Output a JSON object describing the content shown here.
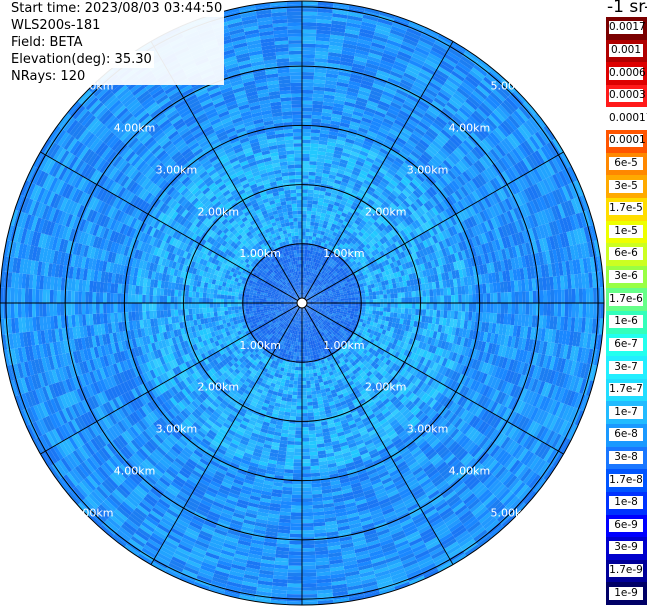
{
  "info": {
    "start_time": "Start time: 2023/08/03 03:44:50",
    "instrument": "WLS200s-181",
    "field": "Field: BETA",
    "elevation": "Elevation(deg): 35.30",
    "nrays": "NRays: 120"
  },
  "colorbar": {
    "units": "-1 sr-1",
    "labels": [
      "0.0017",
      "0.001",
      "0.0006",
      "0.0003",
      "0.00017",
      "0.0001",
      "6e-5",
      "3e-5",
      "1.7e-5",
      "1e-5",
      "6e-6",
      "3e-6",
      "1.7e-6",
      "1e-6",
      "6e-7",
      "3e-7",
      "1.7e-7",
      "1e-7",
      "6e-8",
      "3e-8",
      "1.7e-8",
      "1e-8",
      "6e-9",
      "3e-9",
      "1.7e-9",
      "1e-9"
    ],
    "colors": [
      "#7a0000",
      "#b00000",
      "#dd0000",
      "#ff1a1a",
      "#ffffff",
      "#ff5500",
      "#ff8800",
      "#ffaa00",
      "#ffdd00",
      "#eeff00",
      "#ccff22",
      "#99ff44",
      "#66ff88",
      "#33ffbb",
      "#22ffee",
      "#22eeff",
      "#22ddff",
      "#22bbff",
      "#1a99ff",
      "#1a77ff",
      "#0055ff",
      "#0033ff",
      "#0000ff",
      "#0000cc",
      "#000099",
      "#000066"
    ]
  },
  "chart_data": {
    "type": "heatmap",
    "projection": "polar PPI",
    "field": "BETA",
    "elevation_deg": 35.3,
    "nrays": 120,
    "range_rings_km": [
      1.0,
      2.0,
      3.0,
      4.0,
      5.0
    ],
    "ring_labels": [
      "1.00km",
      "2.00km",
      "3.00km",
      "4.00km",
      "5.00km"
    ],
    "spokes_deg": [
      0,
      30,
      60,
      90,
      120,
      150,
      180,
      210,
      240,
      270,
      300,
      330
    ],
    "max_range_km": 5.1,
    "dominant_values": "1e-7 to 6e-8 (light to mid blue), near-field about 1.7e-8"
  }
}
